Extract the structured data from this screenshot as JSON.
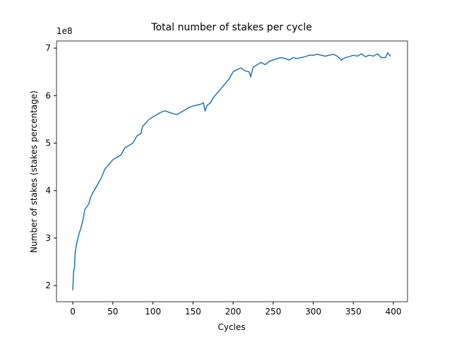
{
  "chart_data": {
    "type": "line",
    "title": "Total number of stakes per cycle",
    "xlabel": "Cycles",
    "ylabel": "Number of stakes (stakes percentage)",
    "y_offset_label": "1e8",
    "color": "#1f77b4",
    "x": [
      0,
      1,
      2,
      3,
      5,
      8,
      10,
      13,
      15,
      20,
      22,
      25,
      30,
      35,
      40,
      45,
      50,
      55,
      60,
      65,
      70,
      75,
      80,
      85,
      87,
      90,
      95,
      100,
      105,
      110,
      115,
      120,
      125,
      130,
      135,
      140,
      145,
      150,
      155,
      160,
      163,
      165,
      168,
      172,
      175,
      180,
      185,
      190,
      195,
      200,
      205,
      210,
      215,
      220,
      222,
      225,
      230,
      235,
      240,
      245,
      250,
      255,
      260,
      265,
      270,
      275,
      280,
      285,
      290,
      295,
      300,
      305,
      310,
      315,
      320,
      325,
      330,
      335,
      340,
      345,
      350,
      355,
      360,
      365,
      370,
      375,
      380,
      385,
      390,
      393,
      395,
      397
    ],
    "values": [
      1.9,
      2.3,
      2.35,
      2.7,
      2.9,
      3.1,
      3.2,
      3.4,
      3.6,
      3.72,
      3.85,
      3.95,
      4.1,
      4.25,
      4.45,
      4.55,
      4.65,
      4.7,
      4.75,
      4.9,
      4.95,
      5.0,
      5.15,
      5.2,
      5.35,
      5.4,
      5.5,
      5.55,
      5.6,
      5.65,
      5.68,
      5.65,
      5.62,
      5.6,
      5.65,
      5.7,
      5.75,
      5.78,
      5.8,
      5.82,
      5.85,
      5.68,
      5.8,
      5.85,
      5.95,
      6.05,
      6.15,
      6.25,
      6.35,
      6.5,
      6.55,
      6.58,
      6.52,
      6.5,
      6.4,
      6.6,
      6.65,
      6.7,
      6.65,
      6.72,
      6.75,
      6.78,
      6.8,
      6.78,
      6.75,
      6.8,
      6.78,
      6.8,
      6.82,
      6.85,
      6.85,
      6.87,
      6.85,
      6.83,
      6.85,
      6.87,
      6.83,
      6.75,
      6.8,
      6.82,
      6.85,
      6.83,
      6.88,
      6.82,
      6.85,
      6.83,
      6.88,
      6.8,
      6.8,
      6.9,
      6.85,
      6.83
    ],
    "xlim": [
      -20.3,
      417.6
    ],
    "ylim": [
      1.66,
      7.15
    ],
    "xticks": [
      0,
      50,
      100,
      150,
      200,
      250,
      300,
      350,
      400
    ],
    "yticks": [
      2,
      3,
      4,
      5,
      6,
      7
    ]
  }
}
